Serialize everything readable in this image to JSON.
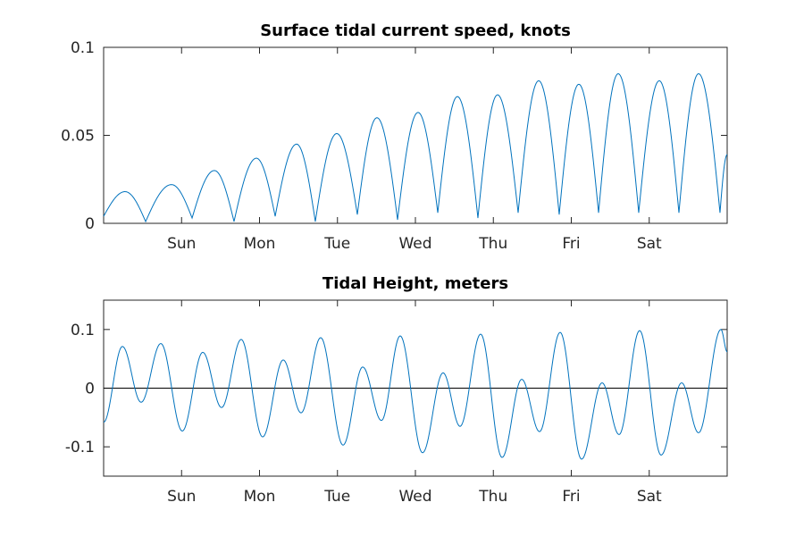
{
  "chart_data": [
    {
      "type": "line",
      "title": "Surface tidal current speed, knots",
      "xlabel": "",
      "ylabel": "",
      "xlim": [
        0,
        8
      ],
      "ylim": [
        0,
        0.1
      ],
      "x_ticks": [
        1,
        2,
        3,
        4,
        5,
        6,
        7
      ],
      "x_tick_labels": [
        "Sun",
        "Mon",
        "Tue",
        "Wed",
        "Thu",
        "Fri",
        "Sat"
      ],
      "y_ticks": [
        0,
        0.05,
        0.1
      ],
      "y_tick_labels": [
        "0",
        "0.05",
        "0.1"
      ],
      "color": "#0072BD",
      "grid": false,
      "series": [
        {
          "name": "speed",
          "extrema_x": [
            0,
            0.275,
            0.539,
            0.871,
            1.135,
            1.421,
            1.673,
            1.96,
            2.201,
            2.476,
            2.716,
            2.991,
            3.255,
            3.507,
            3.771,
            4.034,
            4.287,
            4.539,
            4.802,
            5.054,
            5.318,
            5.582,
            5.845,
            6.097,
            6.35,
            6.602,
            6.865,
            7.129,
            7.381,
            7.633,
            7.908,
            8.0
          ],
          "extrema_y": [
            0.004,
            0.018,
            0.001,
            0.022,
            0.003,
            0.03,
            0.001,
            0.037,
            0.004,
            0.045,
            0.001,
            0.051,
            0.005,
            0.06,
            0.002,
            0.063,
            0.006,
            0.072,
            0.003,
            0.073,
            0.006,
            0.081,
            0.005,
            0.079,
            0.006,
            0.085,
            0.006,
            0.081,
            0.006,
            0.085,
            0.006,
            0.039
          ]
        }
      ]
    },
    {
      "type": "line",
      "title": "Tidal Height, meters",
      "xlabel": "",
      "ylabel": "",
      "xlim": [
        0,
        8
      ],
      "ylim": [
        -0.15,
        0.15
      ],
      "x_ticks": [
        1,
        2,
        3,
        4,
        5,
        6,
        7
      ],
      "x_tick_labels": [
        "Sun",
        "Mon",
        "Tue",
        "Wed",
        "Thu",
        "Fri",
        "Sat"
      ],
      "y_ticks": [
        -0.1,
        0,
        0.1
      ],
      "y_tick_labels": [
        "-0.1",
        "0",
        "0.1"
      ],
      "color": "#0072BD",
      "zero_line": true,
      "grid": false,
      "series": [
        {
          "name": "height",
          "extrema_x": [
            0,
            0.241,
            0.481,
            0.734,
            1.009,
            1.272,
            1.513,
            1.765,
            2.04,
            2.304,
            2.533,
            2.785,
            3.072,
            3.324,
            3.564,
            3.805,
            4.092,
            4.355,
            4.573,
            4.837,
            5.112,
            5.364,
            5.593,
            5.857,
            6.132,
            6.395,
            6.613,
            6.877,
            7.152,
            7.416,
            7.633,
            7.92,
            8.0
          ],
          "extrema_y": [
            -0.058,
            0.071,
            -0.024,
            0.076,
            -0.073,
            0.061,
            -0.033,
            0.083,
            -0.083,
            0.048,
            -0.042,
            0.086,
            -0.097,
            0.036,
            -0.055,
            0.089,
            -0.11,
            0.026,
            -0.065,
            0.092,
            -0.118,
            0.015,
            -0.074,
            0.095,
            -0.121,
            0.009,
            -0.079,
            0.098,
            -0.114,
            0.009,
            -0.076,
            0.1,
            0.062
          ]
        }
      ]
    }
  ]
}
